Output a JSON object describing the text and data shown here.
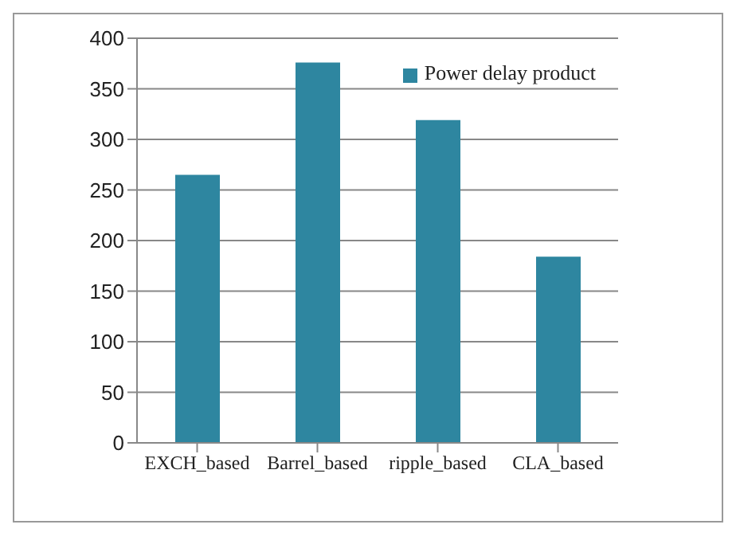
{
  "chart_data": {
    "type": "bar",
    "categories": [
      "EXCH_based",
      "Barrel_based",
      "ripple_based",
      "CLA_based"
    ],
    "series": [
      {
        "name": "Power delay product",
        "color": "#2e86a0",
        "values": [
          265,
          376,
          319,
          184
        ]
      }
    ],
    "ylim": [
      0,
      400
    ],
    "yticks": [
      0,
      50,
      100,
      150,
      200,
      250,
      300,
      350,
      400
    ],
    "grid": "y",
    "legend": "top right"
  }
}
